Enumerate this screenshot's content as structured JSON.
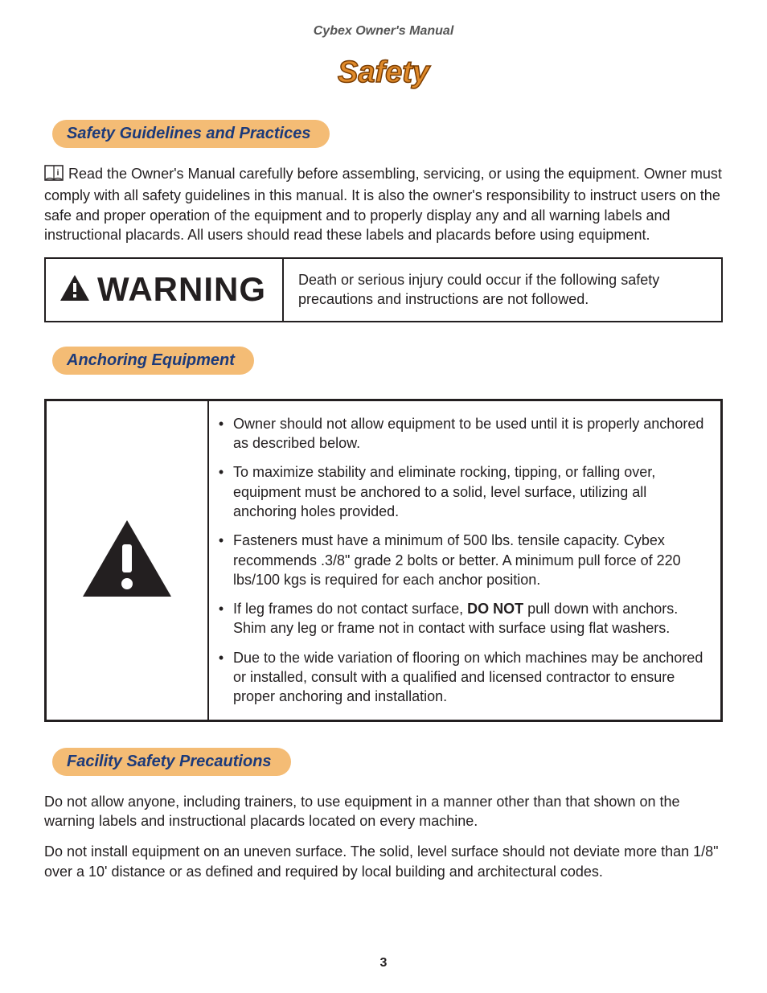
{
  "doc_title": "Cybex Owner's Manual",
  "chapter": {
    "title": "Safety",
    "fill": "#e08a2a",
    "stroke": "#7a3c00",
    "fontsize": 38
  },
  "pill_bg": "#f4bc75",
  "pill_text_color": "#1c3a7a",
  "sections": {
    "guidelines": {
      "heading": "Safety Guidelines and Practices",
      "intro": "Read the Owner's Manual carefully before assembling, servicing, or using the equipment. Owner must comply with all safety guidelines in this manual. It is also the owner's responsibility to instruct users on the safe and proper operation of the equipment and to properly display any and all warning labels and instructional placards. All users should read these labels and placards before using equipment."
    },
    "warning": {
      "label": "WARNING",
      "text": "Death or serious injury could occur if the following safety precautions and instructions are not followed."
    },
    "anchoring": {
      "heading": "Anchoring Equipment",
      "items": [
        {
          "pre": "Owner should not allow equipment to be used until it is properly anchored as described below."
        },
        {
          "pre": "To maximize stability and eliminate rocking, tipping, or falling over, equipment must be anchored to a solid, level surface, utilizing all anchoring holes provided."
        },
        {
          "pre": "Fasteners must have a minimum of 500 lbs. tensile capacity. Cybex recommends .3/8\" grade 2 bolts or better. A minimum pull force of 220 lbs/100 kgs is required for each anchor position."
        },
        {
          "pre": "If leg frames do not contact surface, ",
          "bold": "DO NOT",
          "post": " pull down with anchors. Shim any leg or frame not in contact with surface using flat washers."
        },
        {
          "pre": "Due to the wide variation of flooring on which machines may be anchored or installed, consult with a qualified and licensed contractor to ensure proper anchoring and installation."
        }
      ]
    },
    "facility": {
      "heading": "Facility Safety Precautions",
      "paragraphs": [
        "Do not allow anyone, including trainers, to use equipment in a manner other than that shown on the warning labels and instructional placards located on every machine.",
        "Do not install equipment on an uneven surface. The solid, level surface should not deviate more than 1/8\" over a 10' distance or as defined and required by local building and architectural codes."
      ]
    }
  },
  "page_number": "3"
}
